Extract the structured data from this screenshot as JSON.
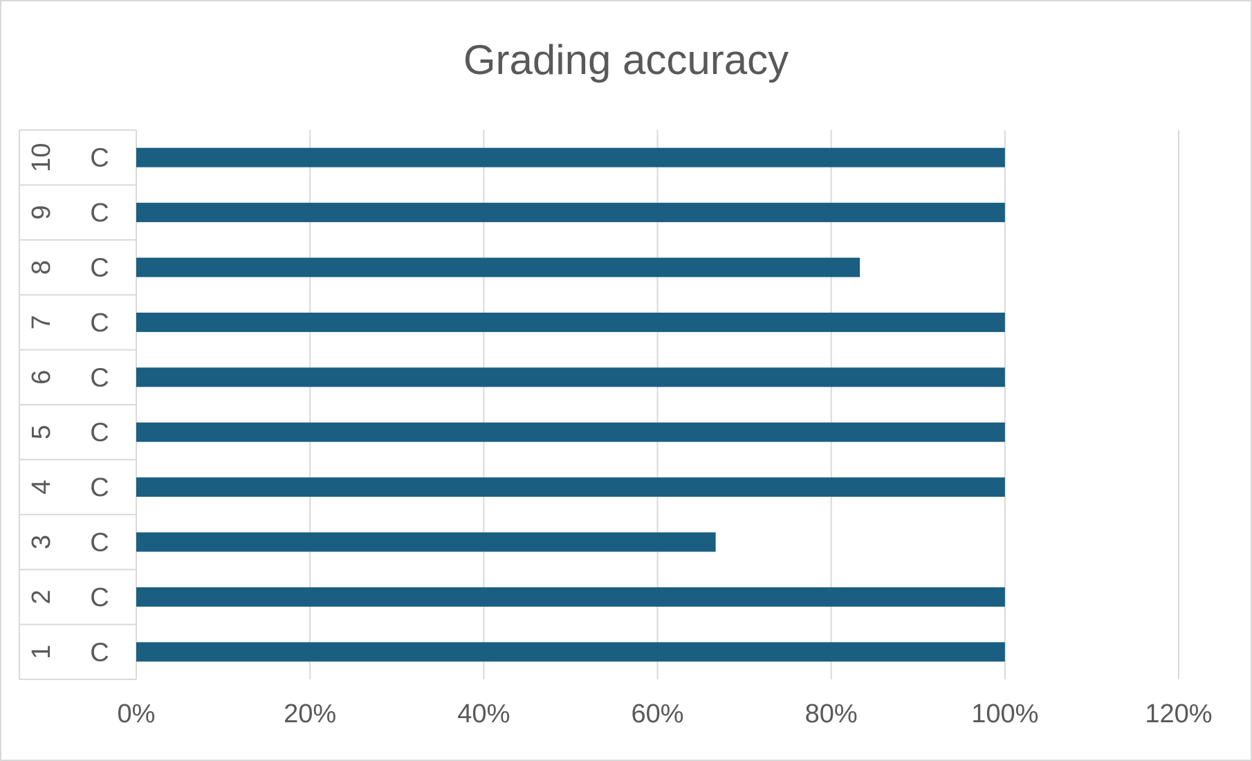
{
  "chart_data": {
    "type": "bar",
    "orientation": "horizontal",
    "title": "Grading accuracy",
    "xlabel": "",
    "ylabel": "",
    "categories": [
      {
        "outer": "1",
        "inner": "C"
      },
      {
        "outer": "2",
        "inner": "C"
      },
      {
        "outer": "3",
        "inner": "C"
      },
      {
        "outer": "4",
        "inner": "C"
      },
      {
        "outer": "5",
        "inner": "C"
      },
      {
        "outer": "6",
        "inner": "C"
      },
      {
        "outer": "7",
        "inner": "C"
      },
      {
        "outer": "8",
        "inner": "C"
      },
      {
        "outer": "9",
        "inner": "C"
      },
      {
        "outer": "10",
        "inner": "C"
      }
    ],
    "values": [
      1.0,
      1.0,
      0.667,
      1.0,
      1.0,
      1.0,
      1.0,
      0.833,
      1.0,
      1.0
    ],
    "xlim": [
      0,
      1.2
    ],
    "xticks": [
      "0%",
      "20%",
      "40%",
      "60%",
      "80%",
      "100%",
      "120%"
    ],
    "grid": true,
    "legend": "none",
    "colors": {
      "bar": "#1a5e82",
      "grid": "#d9d9d9",
      "text": "#595959"
    }
  }
}
